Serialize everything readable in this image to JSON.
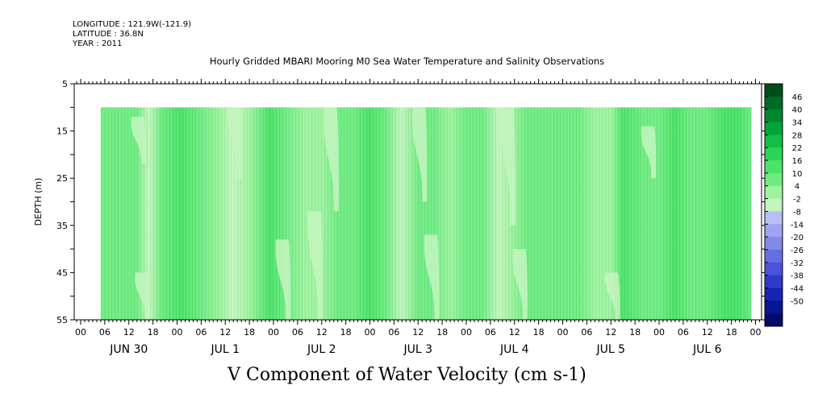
{
  "header": {
    "longitude": "LONGITUDE : 121.9W(-121.9)",
    "latitude": "LATITUDE : 36.8N",
    "year": "YEAR : 2011"
  },
  "chart_data": {
    "type": "heatmap",
    "title": "Hourly Gridded MBARI Mooring M0 Sea Water Temperature and Salinity Observations",
    "variable_title": "V Component of Water Velocity (cm s-1)",
    "ylabel": "DEPTH (m)",
    "y_inverted": true,
    "ylim": [
      5,
      55
    ],
    "y_ticks": [
      "5",
      "15",
      "25",
      "35",
      "45",
      "55"
    ],
    "x_hour_labels": [
      "00",
      "06",
      "12",
      "18"
    ],
    "x_days": [
      "JUN 30",
      "JUL  1",
      "JUL  2",
      "JUL  3",
      "JUL  4",
      "JUL  5",
      "JUL  6"
    ],
    "data_depth_range": [
      10,
      55
    ],
    "data_time_start": "JUN 30 05",
    "colorbar": {
      "labels": [
        "46",
        "40",
        "34",
        "28",
        "22",
        "16",
        "10",
        "4",
        "-2",
        "-8",
        "-14",
        "-20",
        "-26",
        "-32",
        "-38",
        "-44",
        "-50"
      ],
      "colors": [
        "#004d1a",
        "#006b24",
        "#00872e",
        "#00a338",
        "#14bd44",
        "#2ed455",
        "#4ae268",
        "#6feb82",
        "#9ef39f",
        "#c4f5bf",
        "#b9bdf5",
        "#9ea4f0",
        "#8289e8",
        "#666fe0",
        "#4a54d6",
        "#2f3bc8",
        "#1624b4",
        "#0a158f",
        "#050b6b"
      ]
    },
    "bands": [
      {
        "hour": 5,
        "v": 6
      },
      {
        "hour": 9,
        "v": 9
      },
      {
        "hour": 14,
        "v": 4
      },
      {
        "hour": 17,
        "v": -3
      },
      {
        "hour": 20,
        "v": 6
      },
      {
        "hour": 25,
        "v": 10
      },
      {
        "hour": 30,
        "v": 7
      },
      {
        "hour": 35,
        "v": 3
      },
      {
        "hour": 38,
        "v": -6
      },
      {
        "hour": 42,
        "v": -2
      },
      {
        "hour": 47,
        "v": 11
      },
      {
        "hour": 51,
        "v": 8
      },
      {
        "hour": 56,
        "v": 3
      },
      {
        "hour": 60,
        "v": -2
      },
      {
        "hour": 64,
        "v": 8
      },
      {
        "hour": 68,
        "v": 5
      },
      {
        "hour": 72,
        "v": 11
      },
      {
        "hour": 76,
        "v": 6
      },
      {
        "hour": 80,
        "v": -3
      },
      {
        "hour": 84,
        "v": 4
      },
      {
        "hour": 88,
        "v": 7
      },
      {
        "hour": 92,
        "v": 2
      },
      {
        "hour": 96,
        "v": 9
      },
      {
        "hour": 100,
        "v": 6
      },
      {
        "hour": 104,
        "v": -5
      },
      {
        "hour": 107,
        "v": -1
      },
      {
        "hour": 111,
        "v": 6
      },
      {
        "hour": 116,
        "v": 9
      },
      {
        "hour": 120,
        "v": 5
      },
      {
        "hour": 124,
        "v": 8
      },
      {
        "hour": 128,
        "v": 3
      },
      {
        "hour": 132,
        "v": -2
      },
      {
        "hour": 135,
        "v": 12
      },
      {
        "hour": 140,
        "v": 9
      },
      {
        "hour": 144,
        "v": 6
      },
      {
        "hour": 148,
        "v": 10
      },
      {
        "hour": 152,
        "v": 7
      },
      {
        "hour": 156,
        "v": 5
      },
      {
        "hour": 160,
        "v": 11
      },
      {
        "hour": 164,
        "v": 14
      },
      {
        "hour": 167,
        "v": 9
      }
    ],
    "blobs": [
      {
        "hour": 14,
        "depth_top": 12,
        "depth_bot": 22,
        "v": -3
      },
      {
        "hour": 15,
        "depth_top": 45,
        "depth_bot": 55,
        "v": -4
      },
      {
        "hour": 38,
        "depth_top": 10,
        "depth_bot": 25,
        "v": -8
      },
      {
        "hour": 50,
        "depth_top": 38,
        "depth_bot": 55,
        "v": -3
      },
      {
        "hour": 58,
        "depth_top": 32,
        "depth_bot": 55,
        "v": -4
      },
      {
        "hour": 62,
        "depth_top": 10,
        "depth_bot": 32,
        "v": -3
      },
      {
        "hour": 84,
        "depth_top": 10,
        "depth_bot": 30,
        "v": -4
      },
      {
        "hour": 87,
        "depth_top": 37,
        "depth_bot": 55,
        "v": -4
      },
      {
        "hour": 106,
        "depth_top": 10,
        "depth_bot": 35,
        "v": -6
      },
      {
        "hour": 109,
        "depth_top": 40,
        "depth_bot": 55,
        "v": -5
      },
      {
        "hour": 132,
        "depth_top": 45,
        "depth_bot": 55,
        "v": -4
      },
      {
        "hour": 141,
        "depth_top": 14,
        "depth_bot": 25,
        "v": -3
      }
    ]
  }
}
